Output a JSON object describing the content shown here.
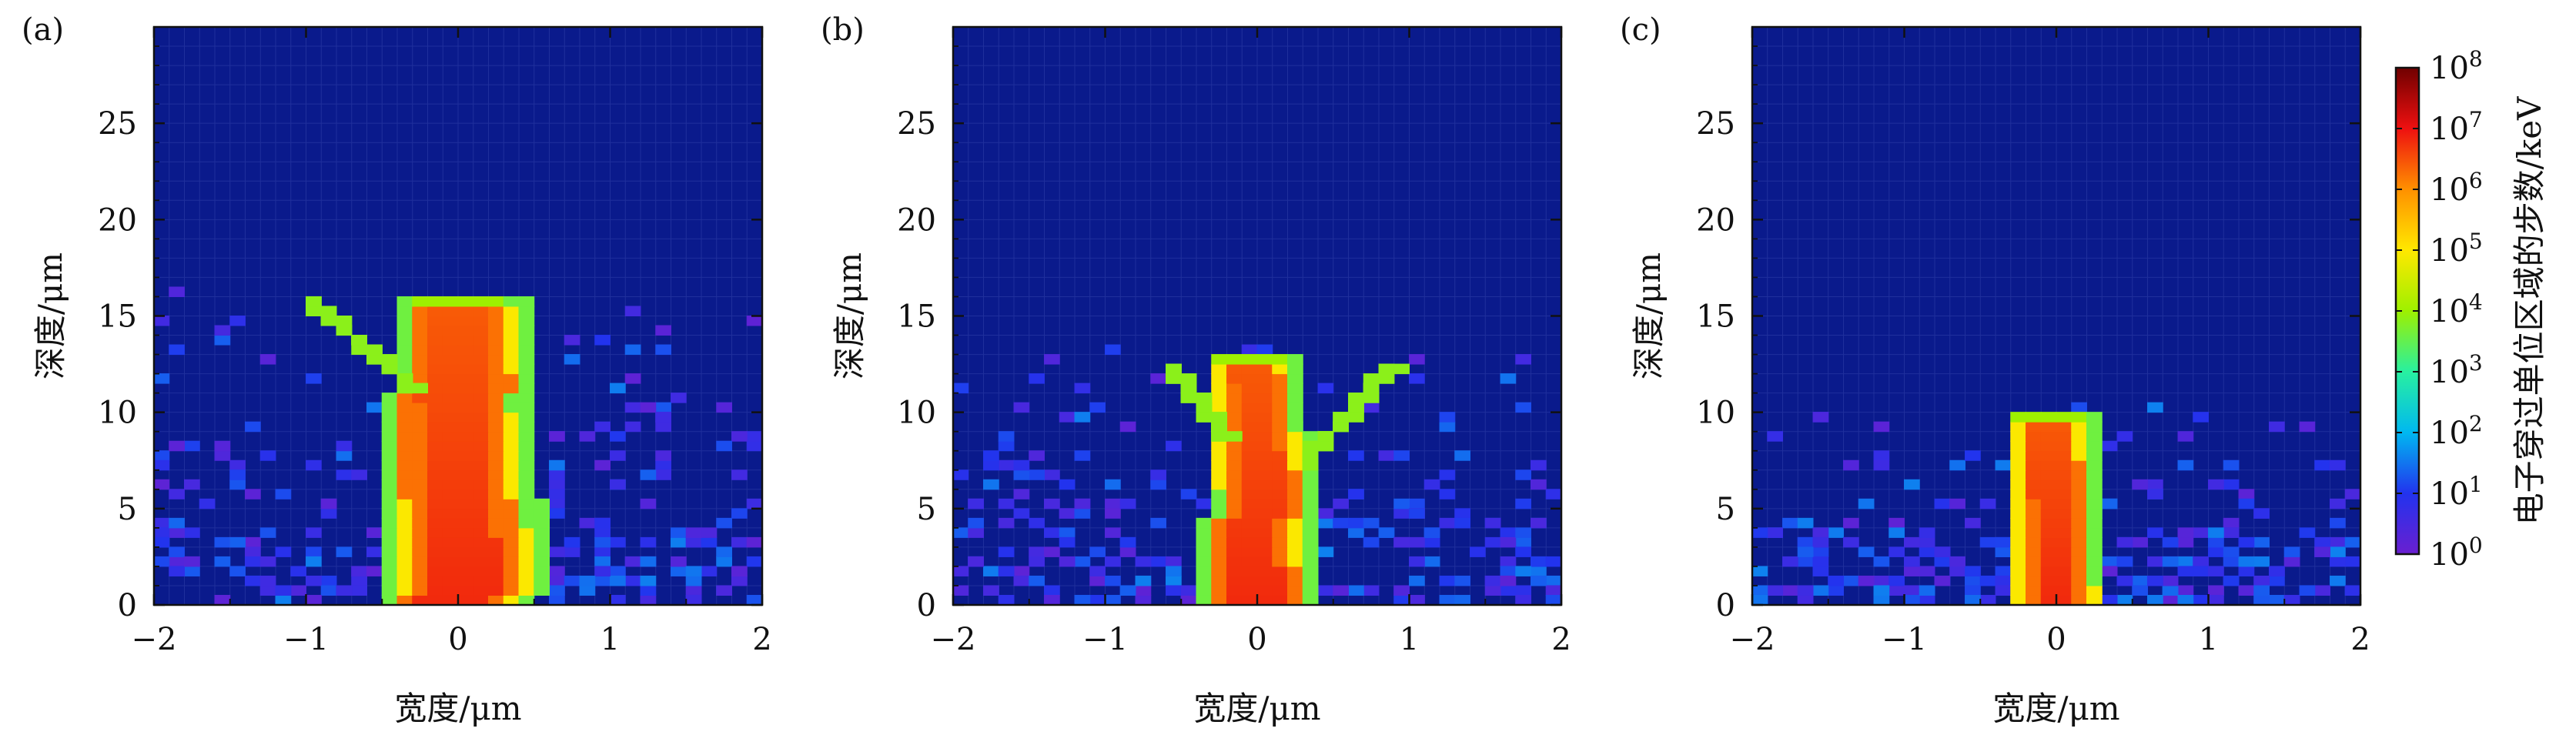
{
  "chart_data": [
    {
      "type": "heatmap",
      "panel_label": "(a)",
      "xlabel": "宽度/μm",
      "ylabel": "深度/μm",
      "xlim": [
        -2,
        2
      ],
      "ylim": [
        0,
        30
      ],
      "xticks": [
        "−2",
        "−1",
        "0",
        "1",
        "2"
      ],
      "yticks": [
        "0",
        "5",
        "10",
        "15",
        "20",
        "25"
      ],
      "core": {
        "top": 16,
        "half_width_bottom": 0.5,
        "half_width_top": 0.35
      },
      "branches": [
        {
          "from": [
            -0.35,
            11
          ],
          "to": [
            -1.0,
            15.5
          ]
        }
      ]
    },
    {
      "type": "heatmap",
      "panel_label": "(b)",
      "xlabel": "宽度/μm",
      "ylabel": "深度/μm",
      "xlim": [
        -2,
        2
      ],
      "ylim": [
        0,
        30
      ],
      "xticks": [
        "−2",
        "−1",
        "0",
        "1",
        "2"
      ],
      "yticks": [
        "0",
        "5",
        "10",
        "15",
        "20",
        "25"
      ],
      "core": {
        "top": 13,
        "half_width_bottom": 0.35,
        "half_width_top": 0.2
      },
      "branches": [
        {
          "from": [
            -0.25,
            8.5
          ],
          "to": [
            -0.65,
            12.2
          ]
        },
        {
          "from": [
            0.25,
            7
          ],
          "to": [
            0.85,
            12.2
          ]
        }
      ]
    },
    {
      "type": "heatmap",
      "panel_label": "(c)",
      "xlabel": "宽度/μm",
      "ylabel": "深度/μm",
      "xlim": [
        -2,
        2
      ],
      "ylim": [
        0,
        30
      ],
      "xticks": [
        "−2",
        "−1",
        "0",
        "1",
        "2"
      ],
      "yticks": [
        "0",
        "5",
        "10",
        "15",
        "20",
        "25"
      ],
      "core": {
        "top": 10,
        "half_width_bottom": 0.25,
        "half_width_top": 0.2
      },
      "branches": []
    }
  ],
  "colorbar": {
    "label": "电子穿过单位区域的步数/keV",
    "tick_base": "10",
    "tick_exponents": [
      "0",
      "1",
      "2",
      "3",
      "4",
      "5",
      "6",
      "7",
      "8"
    ],
    "scale": "log",
    "range": [
      1,
      100000000
    ],
    "colors": [
      "#6a1fd0",
      "#2233ee",
      "#00b8f0",
      "#28f0a0",
      "#9ef000",
      "#ffe800",
      "#ff9000",
      "#ee1010",
      "#700000"
    ]
  },
  "background_color": "#0a1a8c"
}
